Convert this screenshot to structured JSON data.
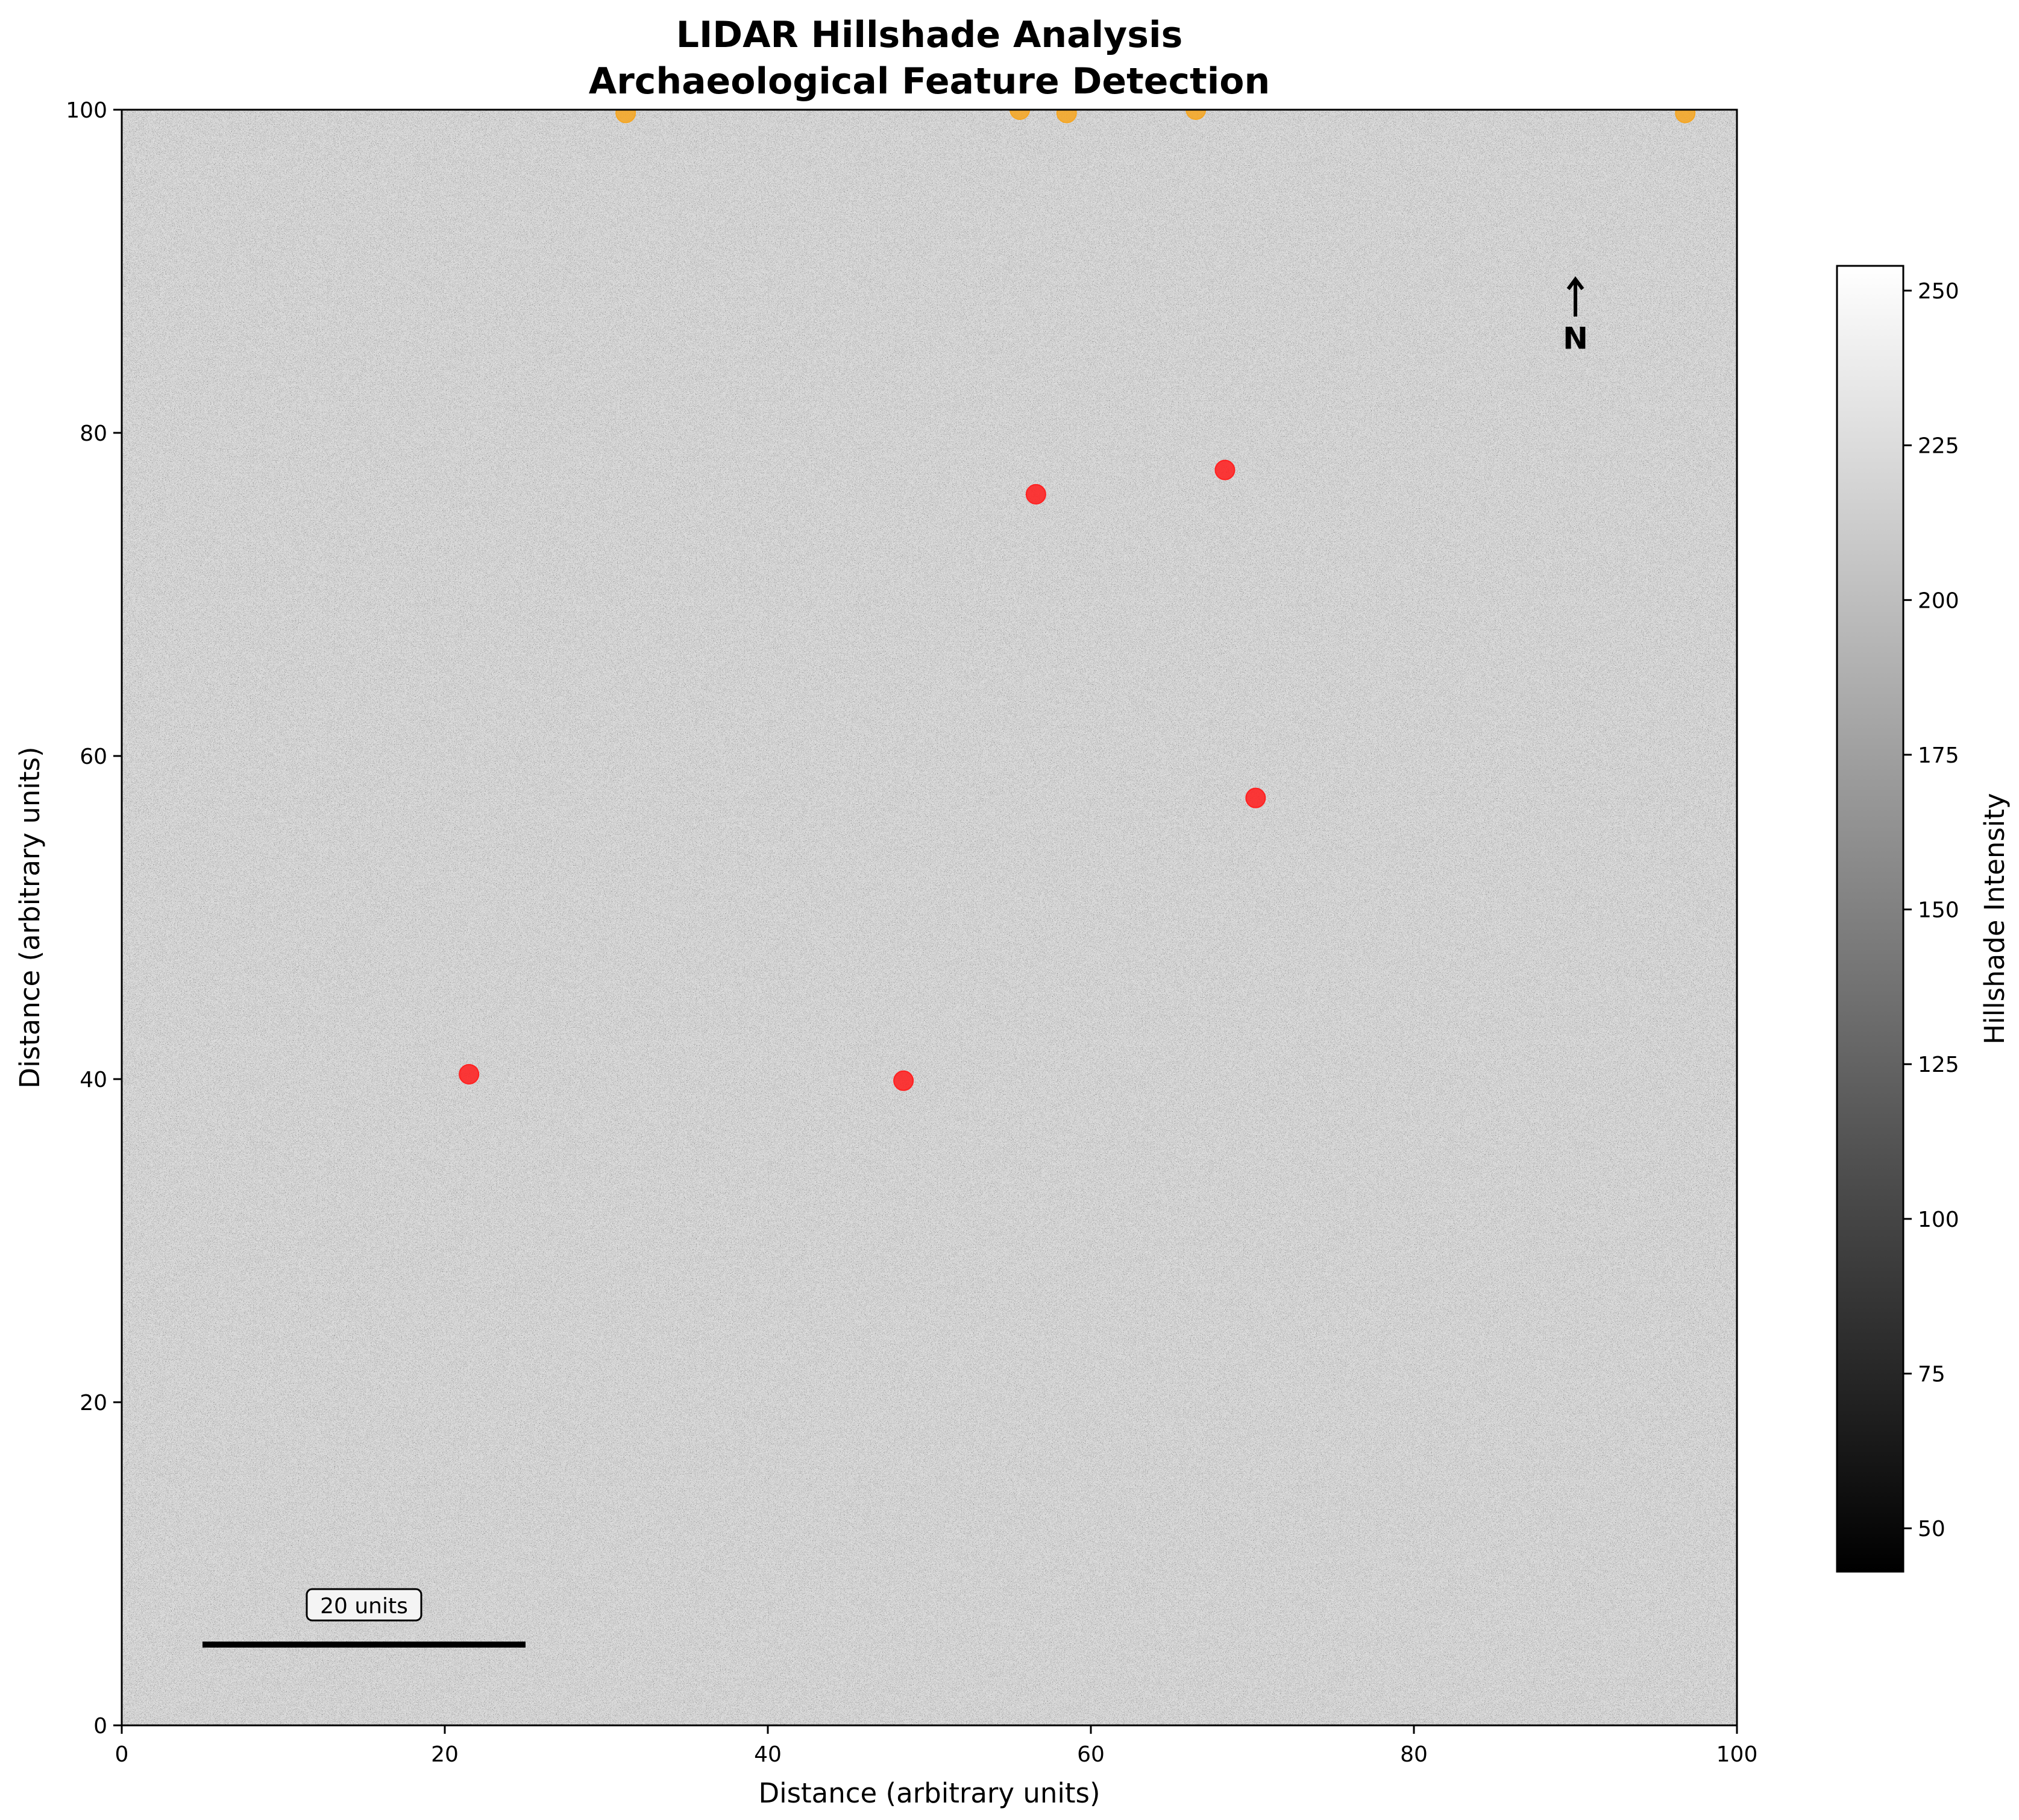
{
  "chart_data": {
    "type": "scatter",
    "title": [
      "LIDAR Hillshade Analysis",
      "Archaeological Feature Detection"
    ],
    "xlabel": "Distance (arbitrary units)",
    "ylabel": "Distance (arbitrary units)",
    "xlim": [
      0,
      100
    ],
    "ylim": [
      0,
      100
    ],
    "xticks": [
      0,
      20,
      40,
      60,
      80,
      100
    ],
    "yticks": [
      0,
      20,
      40,
      60,
      80,
      100
    ],
    "background": {
      "kind": "hillshade raster",
      "colormap": "gray",
      "typical_intensity": 210
    },
    "colorbar": {
      "label": "Hillshade Intensity",
      "range": [
        43,
        254
      ],
      "ticks": [
        50,
        75,
        100,
        125,
        150,
        175,
        200,
        225,
        250
      ]
    },
    "series": [
      {
        "color": "#ff2020",
        "points": [
          {
            "x": 21.5,
            "y": 40.3
          },
          {
            "x": 48.4,
            "y": 39.9
          },
          {
            "x": 56.6,
            "y": 76.2
          },
          {
            "x": 68.3,
            "y": 77.7
          },
          {
            "x": 70.2,
            "y": 57.4
          }
        ]
      },
      {
        "color": "#f5a623",
        "points": [
          {
            "x": 31.2,
            "y": 99.8
          },
          {
            "x": 55.6,
            "y": 100.0
          },
          {
            "x": 58.5,
            "y": 99.8
          },
          {
            "x": 66.5,
            "y": 100.0
          },
          {
            "x": 96.8,
            "y": 99.8
          }
        ]
      }
    ],
    "annotations": {
      "scale_bar": {
        "label": "20 units",
        "x_start": 5,
        "x_end": 25,
        "y": 5
      },
      "north_arrow": {
        "label": "N",
        "x": 90,
        "y_tip": 89.5,
        "y_base": 87.2,
        "y_label": 85.5
      }
    }
  }
}
